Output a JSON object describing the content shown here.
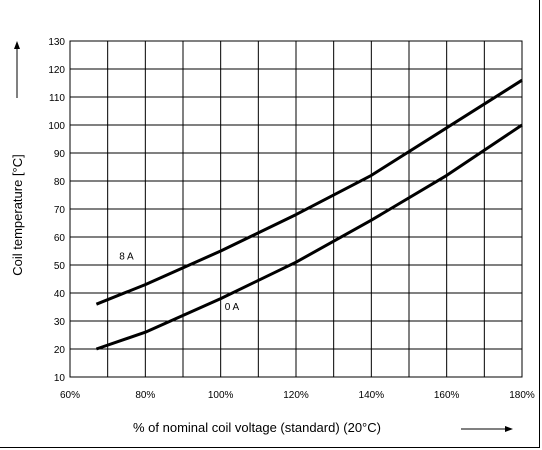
{
  "chart_data": {
    "type": "line",
    "xlabel": "% of nominal coil voltage (standard) (20°C)",
    "ylabel": "Coil temperature [°C]",
    "xlim": [
      60,
      180
    ],
    "ylim": [
      10,
      130
    ],
    "x_ticks": [
      60,
      80,
      100,
      120,
      140,
      160,
      180
    ],
    "x_tick_labels": [
      "60%",
      "80%",
      "100%",
      "120%",
      "140%",
      "160%",
      "180%"
    ],
    "y_ticks": [
      10,
      20,
      30,
      40,
      50,
      60,
      70,
      80,
      90,
      100,
      110,
      120,
      130
    ],
    "y_tick_labels": [
      "10",
      "20",
      "30",
      "40",
      "50",
      "60",
      "70",
      "80",
      "90",
      "100",
      "110",
      "120",
      "130"
    ],
    "grid": true,
    "series": [
      {
        "name": "8 A",
        "color": "#000000",
        "x": [
          67,
          80,
          100,
          120,
          140,
          160,
          180
        ],
        "y": [
          36,
          43,
          55,
          68,
          82,
          99,
          116
        ]
      },
      {
        "name": "0 A",
        "color": "#000000",
        "x": [
          67,
          80,
          100,
          120,
          140,
          160,
          180
        ],
        "y": [
          20,
          26,
          38,
          51,
          66,
          82,
          100
        ]
      }
    ]
  }
}
